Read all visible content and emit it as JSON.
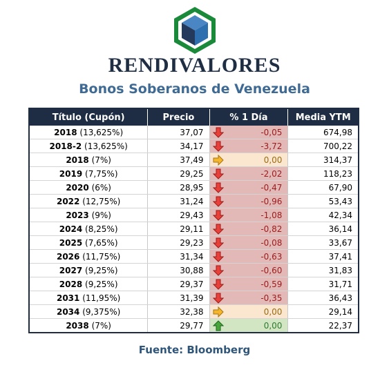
{
  "header": {
    "brand": "RENDIVALORES",
    "subtitle": "Bonos Soberanos de Venezuela"
  },
  "table": {
    "columns": [
      "Título (Cupón)",
      "Precio",
      "% 1 Día",
      "Media YTM"
    ],
    "rows": [
      {
        "year": "2018",
        "coupon": "(13,625%)",
        "price": "37,07",
        "change": "-0,05",
        "trend": "down",
        "ytm": "674,98"
      },
      {
        "year": "2018-2",
        "coupon": "(13,625%)",
        "price": "34,17",
        "change": "-3,72",
        "trend": "down",
        "ytm": "700,22"
      },
      {
        "year": "2018",
        "coupon": "(7%)",
        "price": "37,49",
        "change": "0,00",
        "trend": "flat",
        "ytm": "314,37"
      },
      {
        "year": "2019",
        "coupon": "(7,75%)",
        "price": "29,25",
        "change": "-2,02",
        "trend": "down",
        "ytm": "118,23"
      },
      {
        "year": "2020",
        "coupon": "(6%)",
        "price": "28,95",
        "change": "-0,47",
        "trend": "down",
        "ytm": "67,90"
      },
      {
        "year": "2022",
        "coupon": "(12,75%)",
        "price": "31,24",
        "change": "-0,96",
        "trend": "down",
        "ytm": "53,43"
      },
      {
        "year": "2023",
        "coupon": "(9%)",
        "price": "29,43",
        "change": "-1,08",
        "trend": "down",
        "ytm": "42,34"
      },
      {
        "year": "2024",
        "coupon": "(8,25%)",
        "price": "29,11",
        "change": "-0,82",
        "trend": "down",
        "ytm": "36,14"
      },
      {
        "year": "2025",
        "coupon": "(7,65%)",
        "price": "29,23",
        "change": "-0,08",
        "trend": "down",
        "ytm": "33,67"
      },
      {
        "year": "2026",
        "coupon": "(11,75%)",
        "price": "31,34",
        "change": "-0,63",
        "trend": "down",
        "ytm": "37,41"
      },
      {
        "year": "2027",
        "coupon": "(9,25%)",
        "price": "30,88",
        "change": "-0,60",
        "trend": "down",
        "ytm": "31,83"
      },
      {
        "year": "2028",
        "coupon": "(9,25%)",
        "price": "29,37",
        "change": "-0,59",
        "trend": "down",
        "ytm": "31,71"
      },
      {
        "year": "2031",
        "coupon": "(11,95%)",
        "price": "31,39",
        "change": "-0,35",
        "trend": "down",
        "ytm": "36,43"
      },
      {
        "year": "2034",
        "coupon": "(9,375%)",
        "price": "32,38",
        "change": "0,00",
        "trend": "flat",
        "ytm": "29,14"
      },
      {
        "year": "2038",
        "coupon": "(7%)",
        "price": "29,77",
        "change": "0,00",
        "trend": "up",
        "ytm": "22,37"
      }
    ]
  },
  "colors": {
    "down": "#e3b9b8",
    "flat": "#fbe6cf",
    "up": "#d3e6c4",
    "header": "#1e2d43"
  },
  "icons": {
    "down": "arrow-down-icon",
    "flat": "arrow-right-icon",
    "up": "arrow-up-icon"
  },
  "footer": {
    "source": "Fuente: Bloomberg"
  }
}
